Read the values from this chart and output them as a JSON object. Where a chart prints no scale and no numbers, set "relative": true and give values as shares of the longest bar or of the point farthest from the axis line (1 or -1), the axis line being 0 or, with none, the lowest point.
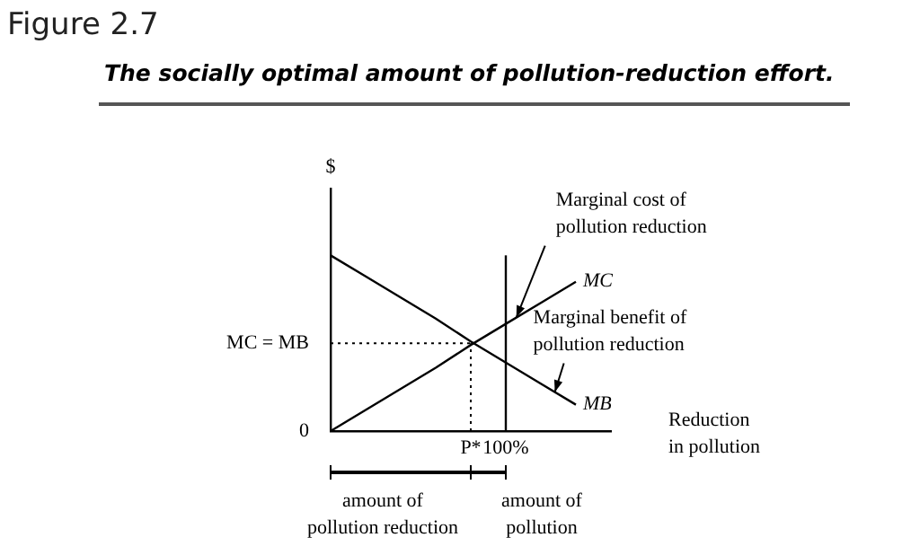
{
  "chart_data": {
    "type": "line",
    "relative": true,
    "title": "The socially optimal amount of pollution-reduction effort.",
    "xlabel": "Reduction in pollution",
    "ylabel": "$",
    "categories": [
      null,
      null,
      null,
      null,
      "P*",
      "100%",
      null,
      null,
      null
    ],
    "series": [
      {
        "name": "MC",
        "color": "#000000",
        "values": [
          0,
          0.12,
          0.24,
          0.36,
          0.49,
          0.61,
          0.73,
          0.85,
          null
        ]
      },
      {
        "name": "MB",
        "color": "#000000",
        "values": [
          1,
          0.88,
          0.76,
          0.64,
          0.51,
          0.39,
          0.27,
          0.15,
          null
        ]
      }
    ],
    "ref_lines": [
      {
        "axis": "y",
        "value": 0.5,
        "label": "MC = MB",
        "line_style": "dotted",
        "color": "#000000"
      },
      {
        "axis": "x",
        "value": "P*",
        "line_style": "dotted",
        "color": "#000000"
      },
      {
        "axis": "x",
        "value": "100%",
        "color": "#000000"
      }
    ],
    "annotations": [
      "Figure 2.7",
      "Marginal cost of pollution reduction",
      "Marginal benefit of pollution reduction",
      "0",
      "amount of pollution reduction",
      "amount of pollution"
    ],
    "grid": false,
    "legend": false,
    "marker": "none"
  }
}
